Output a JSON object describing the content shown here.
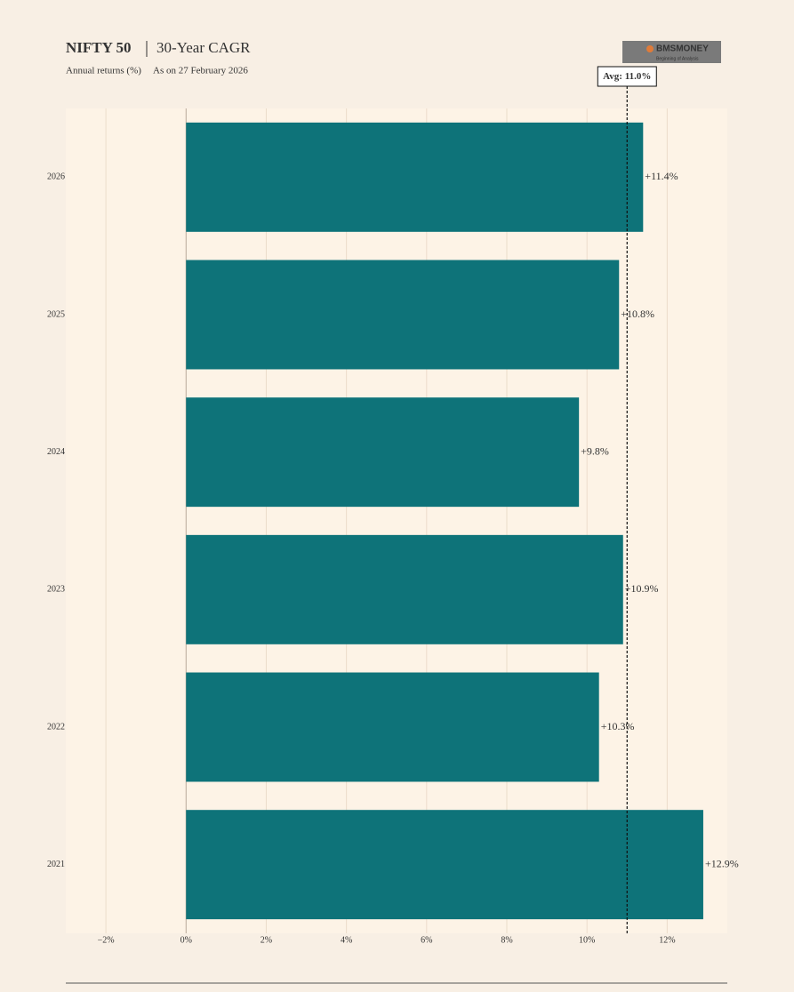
{
  "chart_data": {
    "type": "barh",
    "title": "NIFTY 50",
    "subtitle": "30-Year CAGR",
    "caption": "Annual returns (%)",
    "date_note": "As on 27 February 2026",
    "categories": [
      "2026",
      "2025",
      "2024",
      "2023",
      "2022",
      "2021"
    ],
    "values": [
      11.4,
      10.8,
      9.8,
      10.9,
      10.3,
      12.9
    ],
    "value_labels": [
      "+11.4%",
      "+10.8%",
      "+9.8%",
      "+10.9%",
      "+10.3%",
      "+12.9%"
    ],
    "color": "#0e7379",
    "xlim": [
      -3,
      13.5
    ],
    "xticks": [
      {
        "value": -2,
        "label": "−2%"
      },
      {
        "value": 0,
        "label": "0%"
      },
      {
        "value": 2,
        "label": "2%"
      },
      {
        "value": 4,
        "label": "4%"
      },
      {
        "value": 6,
        "label": "6%"
      },
      {
        "value": 8,
        "label": "8%"
      },
      {
        "value": 10,
        "label": "10%"
      },
      {
        "value": 12,
        "label": "12%"
      }
    ],
    "grid": true,
    "average": {
      "value": 11.0,
      "label": "Avg: 11.0%"
    }
  },
  "brand": {
    "name": "BMSMONEY",
    "tagline": "Beginning of Analysis"
  }
}
